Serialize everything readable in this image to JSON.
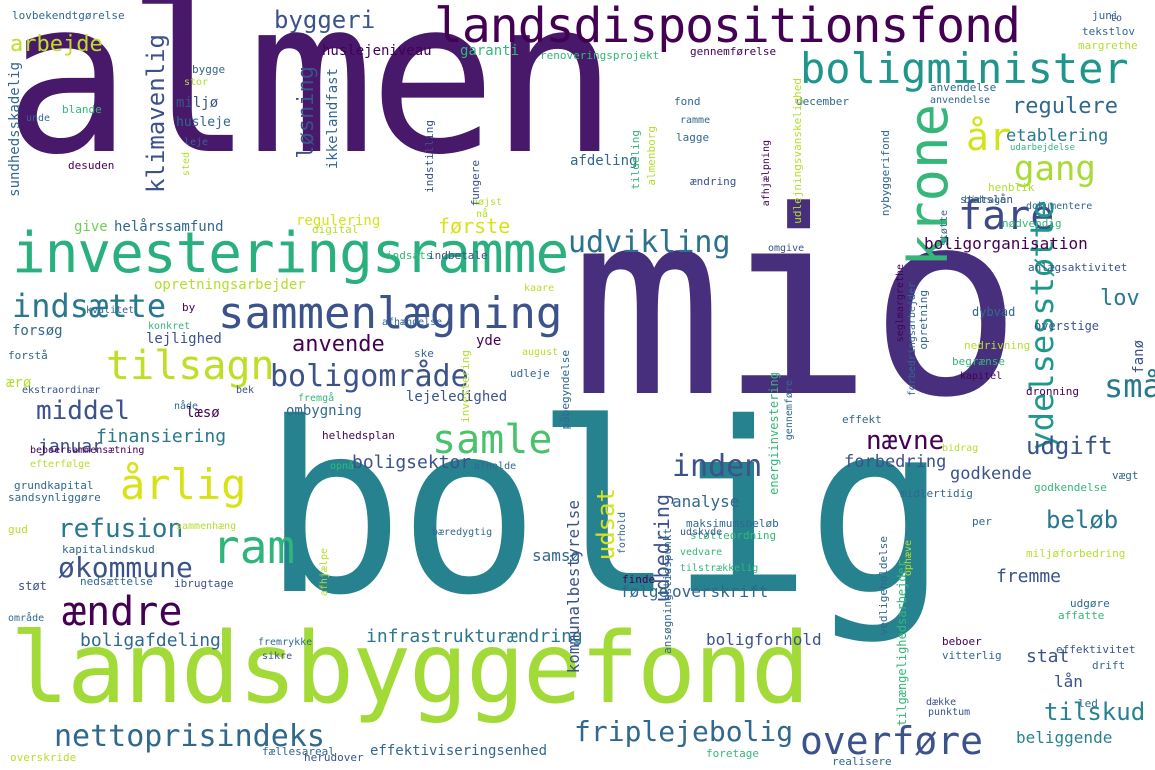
{
  "palette": [
    "#440154",
    "#482878",
    "#3e4989",
    "#31688e",
    "#26828e",
    "#1f9e89",
    "#35b779",
    "#6ece58",
    "#b5de2b",
    "#fde725"
  ],
  "words": [
    {
      "text": "almen"
    },
    {
      "text": "mio"
    },
    {
      "text": "bolig"
    },
    {
      "text": "landsbyggefond"
    },
    {
      "text": "landsdispositionsfond"
    },
    {
      "text": "investeringsramme"
    },
    {
      "text": "boligminister"
    },
    {
      "text": "krone"
    },
    {
      "text": "sammenlægning"
    },
    {
      "text": "tilsagn"
    },
    {
      "text": "fare"
    },
    {
      "text": "år"
    },
    {
      "text": "gang"
    },
    {
      "text": "udvikling"
    },
    {
      "text": "ydelsesstøtte"
    },
    {
      "text": "indsætte"
    },
    {
      "text": "boligområde"
    },
    {
      "text": "samle"
    },
    {
      "text": "årlig"
    },
    {
      "text": "ram"
    },
    {
      "text": "ændre"
    },
    {
      "text": "økommune"
    },
    {
      "text": "nettoprisindeks"
    },
    {
      "text": "overføre"
    },
    {
      "text": "fripleje­bolig"
    },
    {
      "text": "byggeri"
    },
    {
      "text": "arbejde"
    },
    {
      "text": "regulere"
    },
    {
      "text": "etablering"
    },
    {
      "text": "løsning"
    },
    {
      "text": "klimavenlig"
    },
    {
      "text": "middel"
    },
    {
      "text": "anvende"
    },
    {
      "text": "refusion"
    },
    {
      "text": "lov"
    },
    {
      "text": "småø"
    },
    {
      "text": "inden"
    },
    {
      "text": "nævne"
    },
    {
      "text": "udgift"
    },
    {
      "text": "beløb"
    },
    {
      "text": "tilskud"
    },
    {
      "text": "finansiering"
    },
    {
      "text": "januar"
    },
    {
      "text": "boligsektor"
    },
    {
      "text": "infrastrukturændring"
    },
    {
      "text": "boligafdeling"
    },
    {
      "text": "boligforhold"
    },
    {
      "text": "første"
    },
    {
      "text": "udsat"
    },
    {
      "text": "samsø"
    },
    {
      "text": "stat"
    },
    {
      "text": "fremme"
    },
    {
      "text": "lån"
    },
    {
      "text": "beliggende"
    },
    {
      "text": "forbedring"
    },
    {
      "text": "godkende"
    },
    {
      "text": "analyse"
    },
    {
      "text": "udbedring"
    },
    {
      "text": "overskrift"
    },
    {
      "text": "følge"
    },
    {
      "text": "kommunalbestyrelse"
    },
    {
      "text": "boligorganisation"
    },
    {
      "text": "give"
    },
    {
      "text": "helårssamfund"
    },
    {
      "text": "regulering"
    },
    {
      "text": "huslejeniveau"
    },
    {
      "text": "garanti"
    },
    {
      "text": "ikkelandfast"
    },
    {
      "text": "afdeling"
    },
    {
      "text": "lejlighed"
    },
    {
      "text": "forsøg"
    },
    {
      "text": "læsø"
    },
    {
      "text": "lejeledighed"
    },
    {
      "text": "ombygning"
    },
    {
      "text": "yde"
    },
    {
      "text": "effektiviseringsenhed"
    },
    {
      "text": "opretningsarbejder"
    },
    {
      "text": "miljø"
    },
    {
      "text": "husleje"
    },
    {
      "text": "sundhedsskadelig"
    },
    {
      "text": "lovbekendtgørelse"
    },
    {
      "text": "renoveringsprojekt"
    },
    {
      "text": "gennemførelse"
    },
    {
      "text": "december"
    },
    {
      "text": "tekstlov"
    },
    {
      "text": "margrethe"
    },
    {
      "text": "anvendelse"
    },
    {
      "text": "udarbejdelse"
    },
    {
      "text": "statslån"
    },
    {
      "text": "dokumentere"
    },
    {
      "text": "nødvendig"
    },
    {
      "text": "henblik"
    },
    {
      "text": "anlægsaktivitet"
    },
    {
      "text": "overstige"
    },
    {
      "text": "dybvad"
    },
    {
      "text": "nedrivning"
    },
    {
      "text": "begrænse"
    },
    {
      "text": "kapitel"
    },
    {
      "text": "dronning"
    },
    {
      "text": "effekt"
    },
    {
      "text": "midlertidig"
    },
    {
      "text": "godkendelse"
    },
    {
      "text": "vitterlig"
    },
    {
      "text": "effektivitet"
    },
    {
      "text": "drift"
    },
    {
      "text": "maksimumsbeløb"
    },
    {
      "text": "støtteordning"
    },
    {
      "text": "udskyde"
    },
    {
      "text": "vedvare"
    },
    {
      "text": "finde"
    },
    {
      "text": "tilstrækkelig"
    },
    {
      "text": "miljøforbedring"
    },
    {
      "text": "udgøre"
    },
    {
      "text": "affatte"
    },
    {
      "text": "fremrykke"
    },
    {
      "text": "sikre"
    },
    {
      "text": "beboer"
    },
    {
      "text": "punktum"
    },
    {
      "text": "foretage"
    },
    {
      "text": "realisere"
    },
    {
      "text": "herudover"
    },
    {
      "text": "fællesareal"
    },
    {
      "text": "overskride"
    },
    {
      "text": "nedsættelse"
    },
    {
      "text": "ibrugtage"
    },
    {
      "text": "kapitalindskud"
    },
    {
      "text": "sammenhæng"
    },
    {
      "text": "støt"
    },
    {
      "text": "gud"
    },
    {
      "text": "sandsynliggøre"
    },
    {
      "text": "grundkapital"
    },
    {
      "text": "efterfølge"
    },
    {
      "text": "beboersammensætning"
    },
    {
      "text": "ekstraordinær"
    },
    {
      "text": "ærø"
    },
    {
      "text": "forstå"
    },
    {
      "text": "kvalitet"
    },
    {
      "text": "konkret"
    },
    {
      "text": "helhedsplan"
    },
    {
      "text": "opnå"
    },
    {
      "text": "afholde"
    },
    {
      "text": "bæredygtig"
    },
    {
      "text": "forhold"
    },
    {
      "text": "indsats"
    },
    {
      "text": "indbetale"
    },
    {
      "text": "afhændelse"
    },
    {
      "text": "kaare"
    },
    {
      "text": "august"
    },
    {
      "text": "ske"
    },
    {
      "text": "udleje"
    },
    {
      "text": "nåde"
    },
    {
      "text": "bek"
    },
    {
      "text": "fremgå"
    },
    {
      "text": "fanø"
    },
    {
      "text": "digital"
    },
    {
      "text": "højst"
    },
    {
      "text": "nå"
    },
    {
      "text": "omgive"
    },
    {
      "text": "lagge"
    },
    {
      "text": "ændring"
    },
    {
      "text": "fungere"
    },
    {
      "text": "indstilling"
    },
    {
      "text": "tildeling"
    },
    {
      "text": "fond"
    },
    {
      "text": "ramme"
    },
    {
      "text": "bygge"
    },
    {
      "text": "stor"
    },
    {
      "text": "blande"
    },
    {
      "text": "leje"
    },
    {
      "text": "sted"
    },
    {
      "text": "desuden"
    },
    {
      "text": "unde"
    },
    {
      "text": "juni"
    },
    {
      "text": "to"
    },
    {
      "text": "per"
    },
    {
      "text": "led"
    },
    {
      "text": "dække"
    },
    {
      "text": "vægt"
    },
    {
      "text": "bidrag"
    },
    {
      "text": "støtte"
    },
    {
      "text": "bidrage"
    },
    {
      "text": "by"
    },
    {
      "text": "område"
    },
    {
      "text": "nybyggerifond"
    },
    {
      "text": "afhjælpning"
    },
    {
      "text": "udlejningsvanskelighed"
    },
    {
      "text": "energiinvestering"
    },
    {
      "text": "gennemføre"
    },
    {
      "text": "opretning"
    },
    {
      "text": "påbegyndelse"
    },
    {
      "text": "seglmargrethe"
    },
    {
      "text": "forbedringsarbejder"
    },
    {
      "text": "ansøgningstidspunkt"
    },
    {
      "text": "tilgængelighedsarbejder"
    },
    {
      "text": "vedligeholdelse"
    },
    {
      "text": "afhjælpe"
    },
    {
      "text": "ophæve"
    },
    {
      "text": "investering"
    },
    {
      "text": "anvendelse_b"
    },
    {
      "text": "almenborg"
    }
  ]
}
